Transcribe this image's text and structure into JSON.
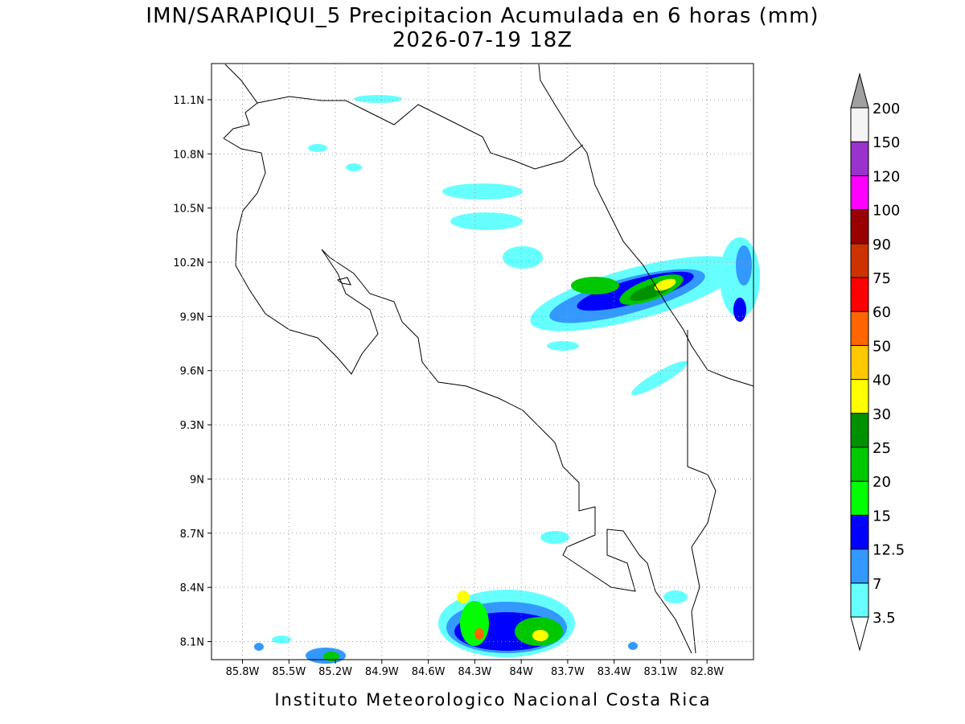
{
  "title": [
    "IMN/SARAPIQUI_5 Precipitacion Acumulada en 6 horas (mm)",
    "2026-07-19 18Z"
  ],
  "map": {
    "xlim": [
      -86.0,
      -82.5
    ],
    "ylim": [
      8.0,
      11.3
    ],
    "xticks": [
      {
        "value": -85.8,
        "label": "85.8W"
      },
      {
        "value": -85.5,
        "label": "85.5W"
      },
      {
        "value": -85.2,
        "label": "85.2W"
      },
      {
        "value": -84.9,
        "label": "84.9W"
      },
      {
        "value": -84.6,
        "label": "84.6W"
      },
      {
        "value": -84.3,
        "label": "84.3W"
      },
      {
        "value": -84.0,
        "label": "84W"
      },
      {
        "value": -83.7,
        "label": "83.7W"
      },
      {
        "value": -83.4,
        "label": "83.4W"
      },
      {
        "value": -83.1,
        "label": "83.1W"
      },
      {
        "value": -82.8,
        "label": "82.8W"
      }
    ],
    "yticks": [
      {
        "value": 8.1,
        "label": "8.1N"
      },
      {
        "value": 8.4,
        "label": "8.4N"
      },
      {
        "value": 8.7,
        "label": "8.7N"
      },
      {
        "value": 9.0,
        "label": "9N"
      },
      {
        "value": 9.3,
        "label": "9.3N"
      },
      {
        "value": 9.6,
        "label": "9.6N"
      },
      {
        "value": 9.9,
        "label": "9.9N"
      },
      {
        "value": 10.2,
        "label": "10.2N"
      },
      {
        "value": 10.5,
        "label": "10.5N"
      },
      {
        "value": 10.8,
        "label": "10.8N"
      },
      {
        "value": 11.1,
        "label": "11.1N"
      }
    ],
    "grid": true
  },
  "colorbar": {
    "levels": [
      3.5,
      7,
      12.5,
      15,
      20,
      25,
      30,
      40,
      50,
      60,
      75,
      90,
      100,
      120,
      150,
      200
    ],
    "colors": [
      "#66ffff",
      "#3399ff",
      "#0000ff",
      "#00ff00",
      "#00c800",
      "#009100",
      "#ffff00",
      "#ffc800",
      "#ff6600",
      "#ff0000",
      "#cc3300",
      "#990000",
      "#ff00ff",
      "#9933cc",
      "#f4f4f4"
    ],
    "above_color": "#a0a0a0",
    "below_color": "#ffffff"
  },
  "footer": "Instituto Meteorologico Nacional Costa Rica"
}
